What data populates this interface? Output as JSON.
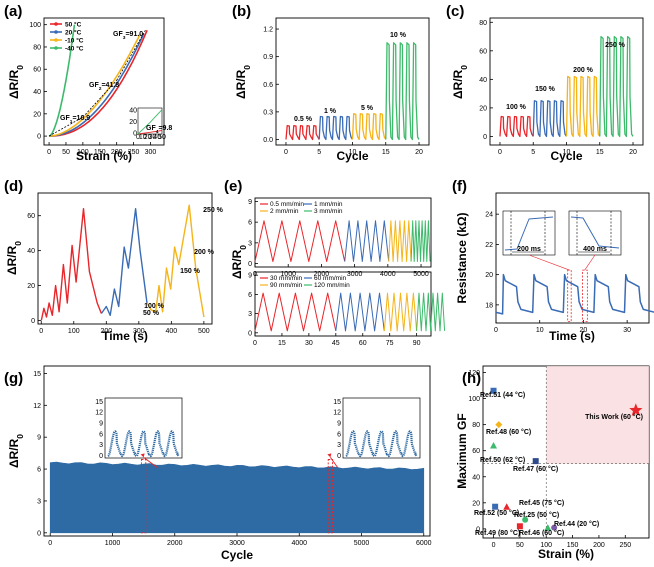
{
  "chart_data": [
    {
      "panel": "(a)",
      "type": "line",
      "xlabel": "Strain (%)",
      "ylabel": "ΔR/R0",
      "xlim": [
        -15,
        340
      ],
      "ylim": [
        -8,
        106
      ],
      "xticks": [
        0,
        50,
        100,
        150,
        200,
        250,
        300
      ],
      "yticks": [
        0,
        20,
        40,
        60,
        80,
        100
      ],
      "series": [
        {
          "name": "50 °C",
          "color": "#e8262b",
          "max_strain": 290,
          "max_value": 95
        },
        {
          "name": "20 °C",
          "color": "#3a6bb5",
          "max_strain": 280,
          "max_value": 92
        },
        {
          "name": "-10 °C",
          "color": "#f5b419",
          "max_strain": 270,
          "max_value": 92
        },
        {
          "name": "-40 °C",
          "color": "#3dba6b",
          "max_strain": 75,
          "max_value": 100
        }
      ],
      "annotations": [
        "GF3=91.0",
        "GF2=41.8",
        "GF1=16.9",
        "GF4=9.8"
      ],
      "inset": {
        "xticks": [
          0,
          10,
          20,
          30,
          40,
          50
        ],
        "yticks": [
          0,
          20,
          40
        ]
      }
    },
    {
      "panel": "(b)",
      "type": "line",
      "xlabel": "Cycle",
      "ylabel": "ΔR/R0",
      "xlim": [
        -1.5,
        21.5
      ],
      "ylim": [
        -0.06,
        1.32
      ],
      "xticks": [
        0,
        5,
        10,
        15,
        20
      ],
      "yticks": [
        0.0,
        0.3,
        0.6,
        0.9,
        1.2
      ],
      "segments": [
        {
          "label": "0.5 %",
          "peak": 0.15,
          "color": "#e8262b"
        },
        {
          "label": "1 %",
          "peak": 0.25,
          "color": "#3a6bb5"
        },
        {
          "label": "5 %",
          "peak": 0.28,
          "color": "#f5b419"
        },
        {
          "label": "10 %",
          "peak": 1.05,
          "color": "#3dba6b"
        }
      ]
    },
    {
      "panel": "(c)",
      "type": "line",
      "xlabel": "Cycle",
      "ylabel": "ΔR/R0",
      "xlim": [
        -1.5,
        21.5
      ],
      "ylim": [
        -6,
        83
      ],
      "xticks": [
        0,
        5,
        10,
        15,
        20
      ],
      "yticks": [
        0,
        20,
        40,
        60,
        80
      ],
      "segments": [
        {
          "label": "100 %",
          "peak": 14,
          "color": "#e8262b"
        },
        {
          "label": "150 %",
          "peak": 25,
          "color": "#3a6bb5"
        },
        {
          "label": "200 %",
          "peak": 42,
          "color": "#f5b419"
        },
        {
          "label": "250 %",
          "peak": 70,
          "color": "#3dba6b"
        }
      ]
    },
    {
      "panel": "(d)",
      "type": "line",
      "xlabel": "Time (s)",
      "ylabel": "ΔR/R0",
      "xlim": [
        -10,
        525
      ],
      "ylim": [
        -2,
        73
      ],
      "xticks": [
        0,
        100,
        200,
        300,
        400,
        500
      ],
      "yticks": [
        0,
        20,
        40,
        60
      ],
      "segments": [
        {
          "label": "50 %",
          "color": "#e8262b"
        },
        {
          "label": "100 %",
          "color": "#3a6bb5"
        },
        {
          "label": "150 %",
          "color": "#f5b419"
        },
        {
          "label": "200 %",
          "color": "#f5b419"
        },
        {
          "label": "250 %",
          "color": "#f5b419"
        }
      ]
    },
    {
      "panel": "(e)",
      "type": "line",
      "ylabel": "ΔR/R0",
      "top": {
        "xlim": [
          0,
          5300
        ],
        "ylim": [
          -0.5,
          9.5
        ],
        "xticks": [
          0,
          1000,
          2000,
          3000,
          4000,
          5000
        ],
        "yticks": [
          0,
          3,
          6,
          9
        ],
        "legend": [
          "0.5 mm/min",
          "1 mm/min",
          "2 mm/min",
          "3 mm/min"
        ]
      },
      "bottom": {
        "xlim": [
          0,
          98
        ],
        "ylim": [
          -0.5,
          9.5
        ],
        "xticks": [
          0,
          15,
          30,
          45,
          60,
          75,
          90
        ],
        "yticks": [
          0,
          3,
          6,
          9
        ],
        "legend": [
          "30 mm/min",
          "60 mm/min",
          "90 mm/min",
          "120 mm/min"
        ]
      },
      "colors": [
        "#e8262b",
        "#3a6bb5",
        "#f5b419",
        "#3dba6b"
      ]
    },
    {
      "panel": "(f)",
      "type": "line",
      "xlabel": "Time (s)",
      "ylabel": "Resistance (kΩ)",
      "xlim": [
        0,
        35
      ],
      "ylim": [
        16.8,
        25.4
      ],
      "xticks": [
        0,
        10,
        20,
        30
      ],
      "yticks": [
        18,
        20,
        22,
        24
      ],
      "color": "#3a6bb5",
      "insets": [
        {
          "label": "200 ms"
        },
        {
          "label": "400 ms"
        }
      ]
    },
    {
      "panel": "(g)",
      "type": "area",
      "xlabel": "Cycle",
      "ylabel": "ΔR/R0",
      "xlim": [
        -100,
        6100
      ],
      "ylim": [
        -0.3,
        15.7
      ],
      "xticks": [
        0,
        1000,
        2000,
        3000,
        4000,
        5000,
        6000
      ],
      "yticks": [
        0,
        3,
        6,
        9,
        12,
        15
      ],
      "start_value": 6.6,
      "end_value": 6.0,
      "color": "#2e6aa3",
      "inset_yticks": [
        0,
        3,
        6,
        9,
        12,
        15
      ]
    },
    {
      "panel": "(h)",
      "type": "scatter",
      "xlabel": "Strain (%)",
      "ylabel": "Maximum GF",
      "xlim": [
        -20,
        295
      ],
      "ylim": [
        -7,
        125
      ],
      "xticks": [
        0,
        50,
        100,
        150,
        200,
        250
      ],
      "yticks": [
        0,
        20,
        40,
        60,
        80,
        100,
        120
      ],
      "points": [
        {
          "label": "Ref.51 (44 °C)",
          "x": 0,
          "y": 106,
          "marker": "square",
          "color": "#3a6bb5"
        },
        {
          "label": "Ref.48 (60 °C)",
          "x": 10,
          "y": 80,
          "marker": "diamond",
          "color": "#f5b419"
        },
        {
          "label": "Ref.50 (62 °C)",
          "x": 0,
          "y": 64,
          "marker": "triangle",
          "color": "#3dba6b"
        },
        {
          "label": "Ref.47 (60 °C)",
          "x": 80,
          "y": 52,
          "marker": "square",
          "color": "#2e4a8a"
        },
        {
          "label": "Ref.45 (75 °C)",
          "x": 25,
          "y": 17,
          "marker": "triangle",
          "color": "#e8262b"
        },
        {
          "label": "Ref.52 (50 °C)",
          "x": 3,
          "y": 17,
          "marker": "square",
          "color": "#3a6bb5"
        },
        {
          "label": "Ref.25 (50 °C)",
          "x": 60,
          "y": 7,
          "marker": "circle",
          "color": "#3dba6b"
        },
        {
          "label": "Ref.44 (20 °C)",
          "x": 115,
          "y": 1,
          "marker": "circle",
          "color": "#7d5aa8"
        },
        {
          "label": "Ref.49 (80 °C)",
          "x": 50,
          "y": 2,
          "marker": "square",
          "color": "#e8262b"
        },
        {
          "label": "Ref.46 (60 °C)",
          "x": 103,
          "y": 1,
          "marker": "triangle",
          "color": "#3dba6b"
        },
        {
          "label": "This Work (60 °C)",
          "x": 270,
          "y": 91,
          "marker": "star",
          "color": "#e8262b"
        }
      ],
      "shaded_region": {
        "x_min": 100,
        "y_min": 50
      }
    }
  ]
}
